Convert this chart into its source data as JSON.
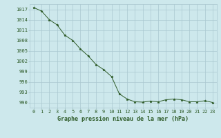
{
  "x": [
    0,
    1,
    2,
    3,
    4,
    5,
    6,
    7,
    8,
    9,
    10,
    11,
    12,
    13,
    14,
    15,
    16,
    17,
    18,
    19,
    20,
    21,
    22,
    23
  ],
  "y": [
    1017.5,
    1016.5,
    1014.0,
    1012.5,
    1009.5,
    1008.0,
    1005.5,
    1003.5,
    1001.0,
    999.5,
    997.5,
    992.5,
    991.0,
    990.2,
    990.1,
    990.4,
    990.2,
    990.8,
    991.0,
    990.8,
    990.2,
    990.2,
    990.5,
    990.0
  ],
  "line_color": "#2d5a27",
  "marker": "*",
  "marker_color": "#2d5a27",
  "bg_color": "#cde8ec",
  "grid_color": "#aac8d0",
  "title": "Graphe pression niveau de la mer (hPa)",
  "ylabel_ticks": [
    990,
    993,
    996,
    999,
    1002,
    1005,
    1008,
    1011,
    1014,
    1017
  ],
  "xlim": [
    -0.5,
    23.5
  ],
  "ylim": [
    988.5,
    1018.5
  ],
  "title_fontsize": 6,
  "tick_fontsize": 5,
  "title_color": "#2d5a27"
}
